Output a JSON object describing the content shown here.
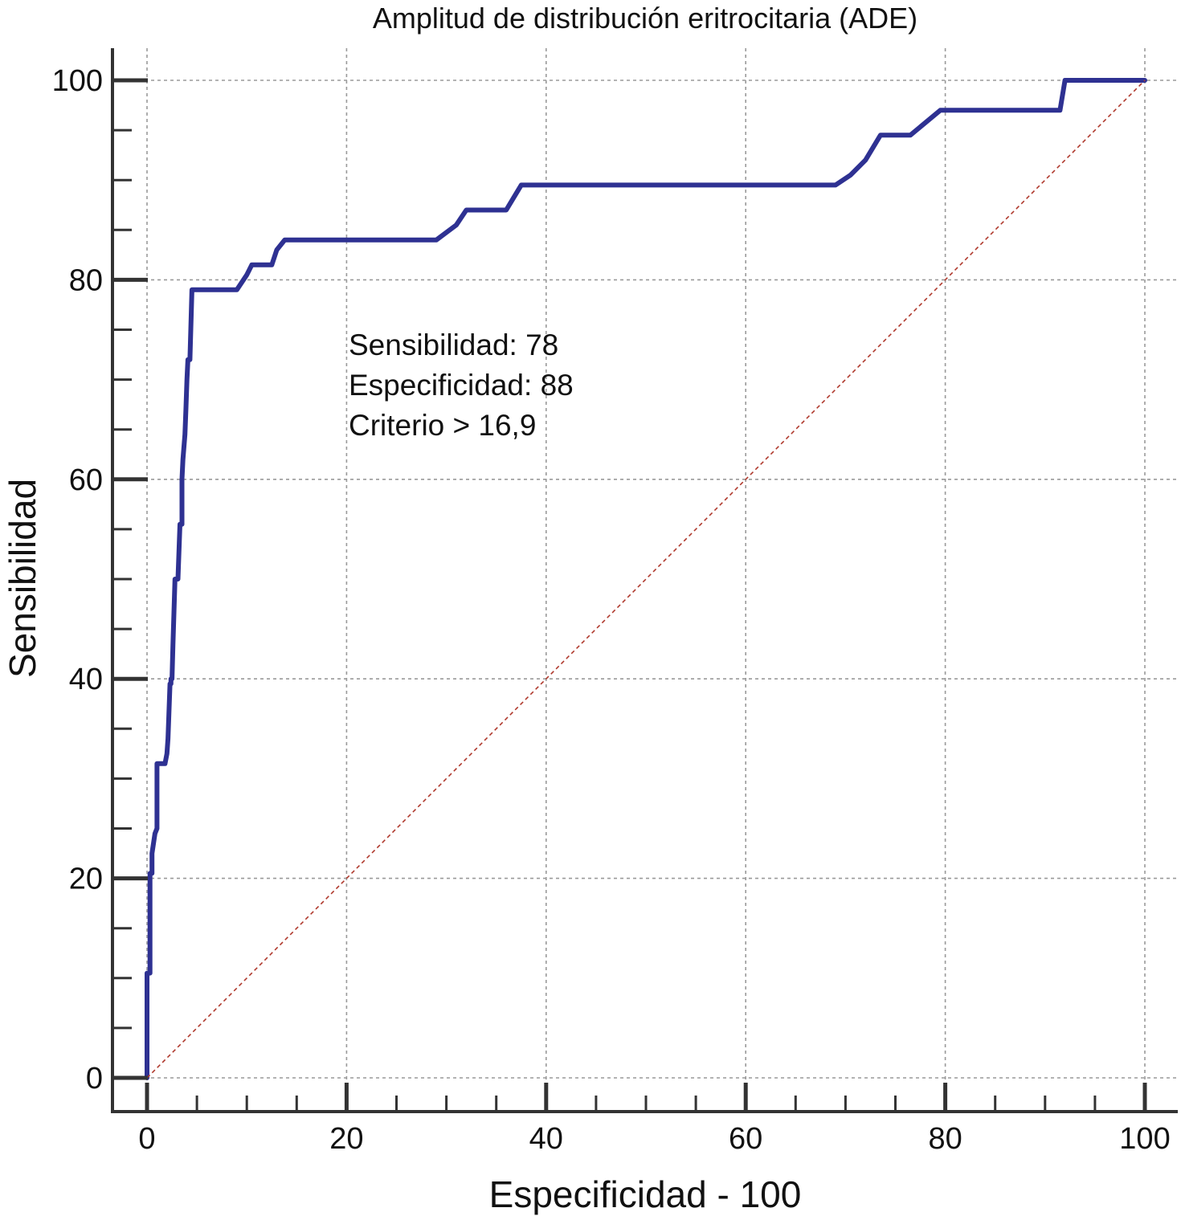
{
  "chart_data": {
    "type": "line",
    "title": "Amplitud de distribución eritrocitaria (ADE)",
    "xlabel": "Especificidad - 100",
    "ylabel": "Sensibilidad",
    "xlim": [
      0,
      100
    ],
    "ylim": [
      0,
      100
    ],
    "xticks": [
      "0",
      "20",
      "40",
      "60",
      "80",
      "100"
    ],
    "yticks": [
      "0",
      "20",
      "40",
      "60",
      "80",
      "100"
    ],
    "grid": true,
    "series": [
      {
        "color": "#2e3192",
        "x": [
          0,
          0,
          0.3,
          0.3,
          0.5,
          0.5,
          0.8,
          1.0,
          1.0,
          1.1,
          1.2,
          1.3,
          1.4,
          1.5,
          1.5,
          1.6,
          1.7,
          1.8,
          2.0,
          2.1,
          2.3,
          2.4,
          2.4,
          2.5,
          2.6,
          2.8,
          2.9,
          3.0,
          3.1,
          3.3,
          3.5,
          3.5,
          3.6,
          3.8,
          3.9,
          4.0,
          4.1,
          4.3,
          4.5,
          4.7,
          4.8,
          4.8,
          5.0,
          5.1,
          8.0,
          9.0,
          10.0,
          10.5,
          12.0,
          12.5,
          13.0,
          13.8,
          29.0,
          31.0,
          32.0,
          36.0,
          37.5,
          69.0,
          70.5,
          72.0,
          73.5,
          76.5,
          79.5,
          91.5,
          92.0,
          100
        ],
        "y": [
          0,
          10.5,
          10.5,
          20.5,
          20.5,
          22.5,
          24.5,
          25.0,
          31.5,
          31.5,
          31.5,
          31.5,
          31.5,
          31.5,
          31.5,
          31.5,
          31.5,
          31.5,
          32.5,
          34.0,
          39.5,
          39.5,
          40.0,
          40.0,
          43.5,
          50.0,
          50.0,
          50.0,
          50.0,
          55.5,
          55.5,
          60.0,
          62.0,
          64.5,
          67.0,
          70.0,
          72.0,
          72.0,
          79.0,
          79.0,
          79.0,
          79.0,
          79.0,
          79.0,
          79.0,
          79.0,
          80.5,
          81.5,
          81.5,
          81.5,
          83.0,
          84.0,
          84.0,
          85.5,
          87.0,
          87.0,
          89.5,
          89.5,
          90.5,
          92.0,
          94.5,
          94.5,
          97.0,
          97.0,
          100,
          100
        ]
      },
      {
        "color": "#b03a2e",
        "x": [
          0,
          100
        ],
        "y": [
          0,
          100
        ]
      }
    ],
    "annotations": [
      "Sensibilidad: 78",
      "Especificidad: 88",
      "Criterio > 16,9"
    ]
  }
}
